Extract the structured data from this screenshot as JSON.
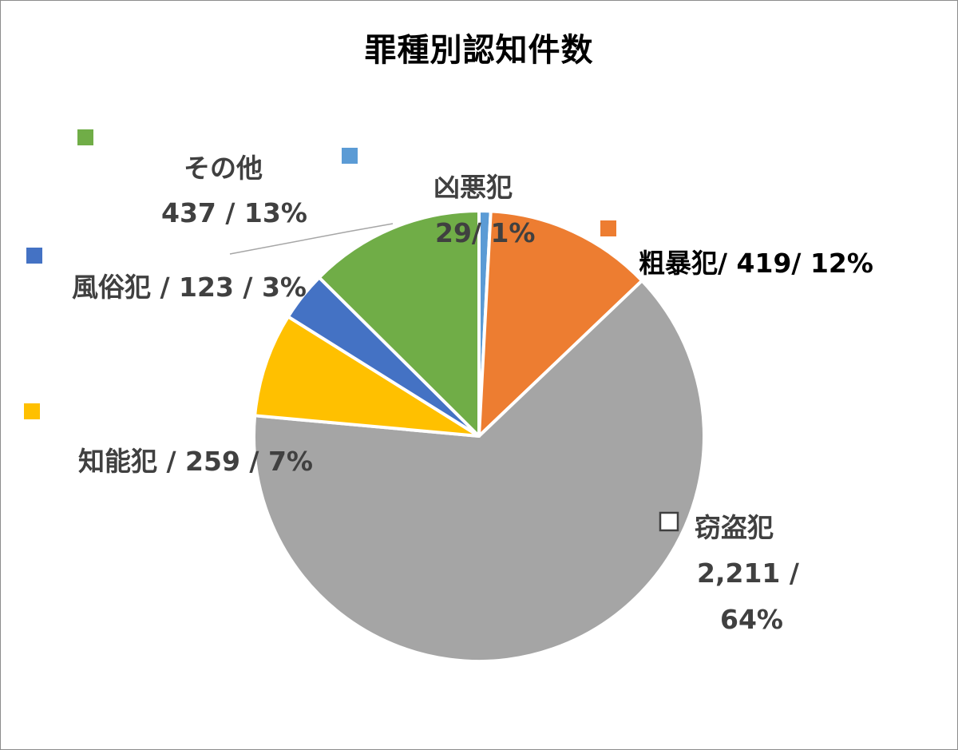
{
  "chart_data": {
    "type": "pie",
    "title": "罪種別認知件数",
    "slices": [
      {
        "name": "凶悪犯",
        "value": 29,
        "percent": 1,
        "color": "#5B9BD5"
      },
      {
        "name": "粗暴犯",
        "value": 419,
        "percent": 12,
        "color": "#ED7D31"
      },
      {
        "name": "窃盗犯",
        "value": 2211,
        "percent": 64,
        "color": "#A5A5A5"
      },
      {
        "name": "知能犯",
        "value": 259,
        "percent": 7,
        "color": "#FFC000"
      },
      {
        "name": "風俗犯",
        "value": 123,
        "percent": 3,
        "color": "#4472C4"
      },
      {
        "name": "その他",
        "value": 437,
        "percent": 13,
        "color": "#70AD47"
      }
    ],
    "labels": {
      "kyoaku_line1": "凶悪犯",
      "kyoaku_line2": "29/ 1%",
      "sobo_line1": "粗暴犯/ 419/ 12%",
      "setto_line1": "窃盗犯",
      "setto_line2": "2,211 /",
      "setto_line3": "64%",
      "chino_line1": "知能犯 / 259 / 7%",
      "fuzoku_line1": "風俗犯 / 123 / 3%",
      "sonota_line1": "その他",
      "sonota_line2": "437 / 13%"
    }
  }
}
